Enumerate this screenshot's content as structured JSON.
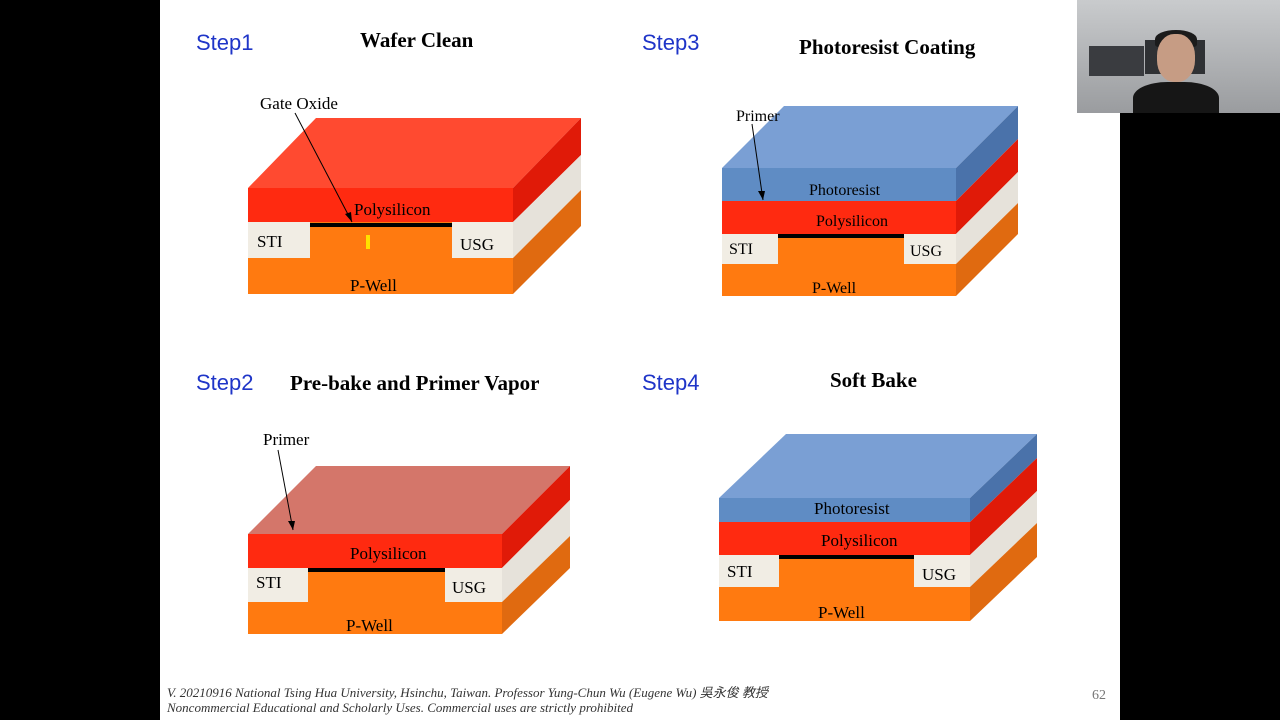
{
  "slide": {
    "panels": [
      {
        "step": "Step1",
        "title": "Wafer Clean",
        "callout": "Gate Oxide"
      },
      {
        "step": "Step3",
        "title": "Photoresist Coating",
        "callout": "Primer"
      },
      {
        "step": "Step2",
        "title": "Pre-bake and Primer Vapor",
        "callout": "Primer"
      },
      {
        "step": "Step4",
        "title": "Soft Bake",
        "callout": ""
      }
    ],
    "layers": {
      "photoresist": "Photoresist",
      "polysilicon": "Polysilicon",
      "sti": "STI",
      "usg": "USG",
      "pwell": "P-Well"
    },
    "colors": {
      "photoresist": "#6e97cc",
      "polysilicon": "#ff2a10",
      "primer": "#d4766a",
      "oxide_white": "#f1ede4",
      "pwell": "#ff7a10",
      "step_text": "#1f35c8"
    },
    "footer": {
      "line1": "V. 20210916 National Tsing Hua University, Hsinchu, Taiwan. Professor Yung-Chun Wu (Eugene Wu) 吳永俊 教授",
      "line2": "Noncommercial Educational and Scholarly Uses. Commercial uses are strictly prohibited"
    },
    "page_number": "62"
  }
}
